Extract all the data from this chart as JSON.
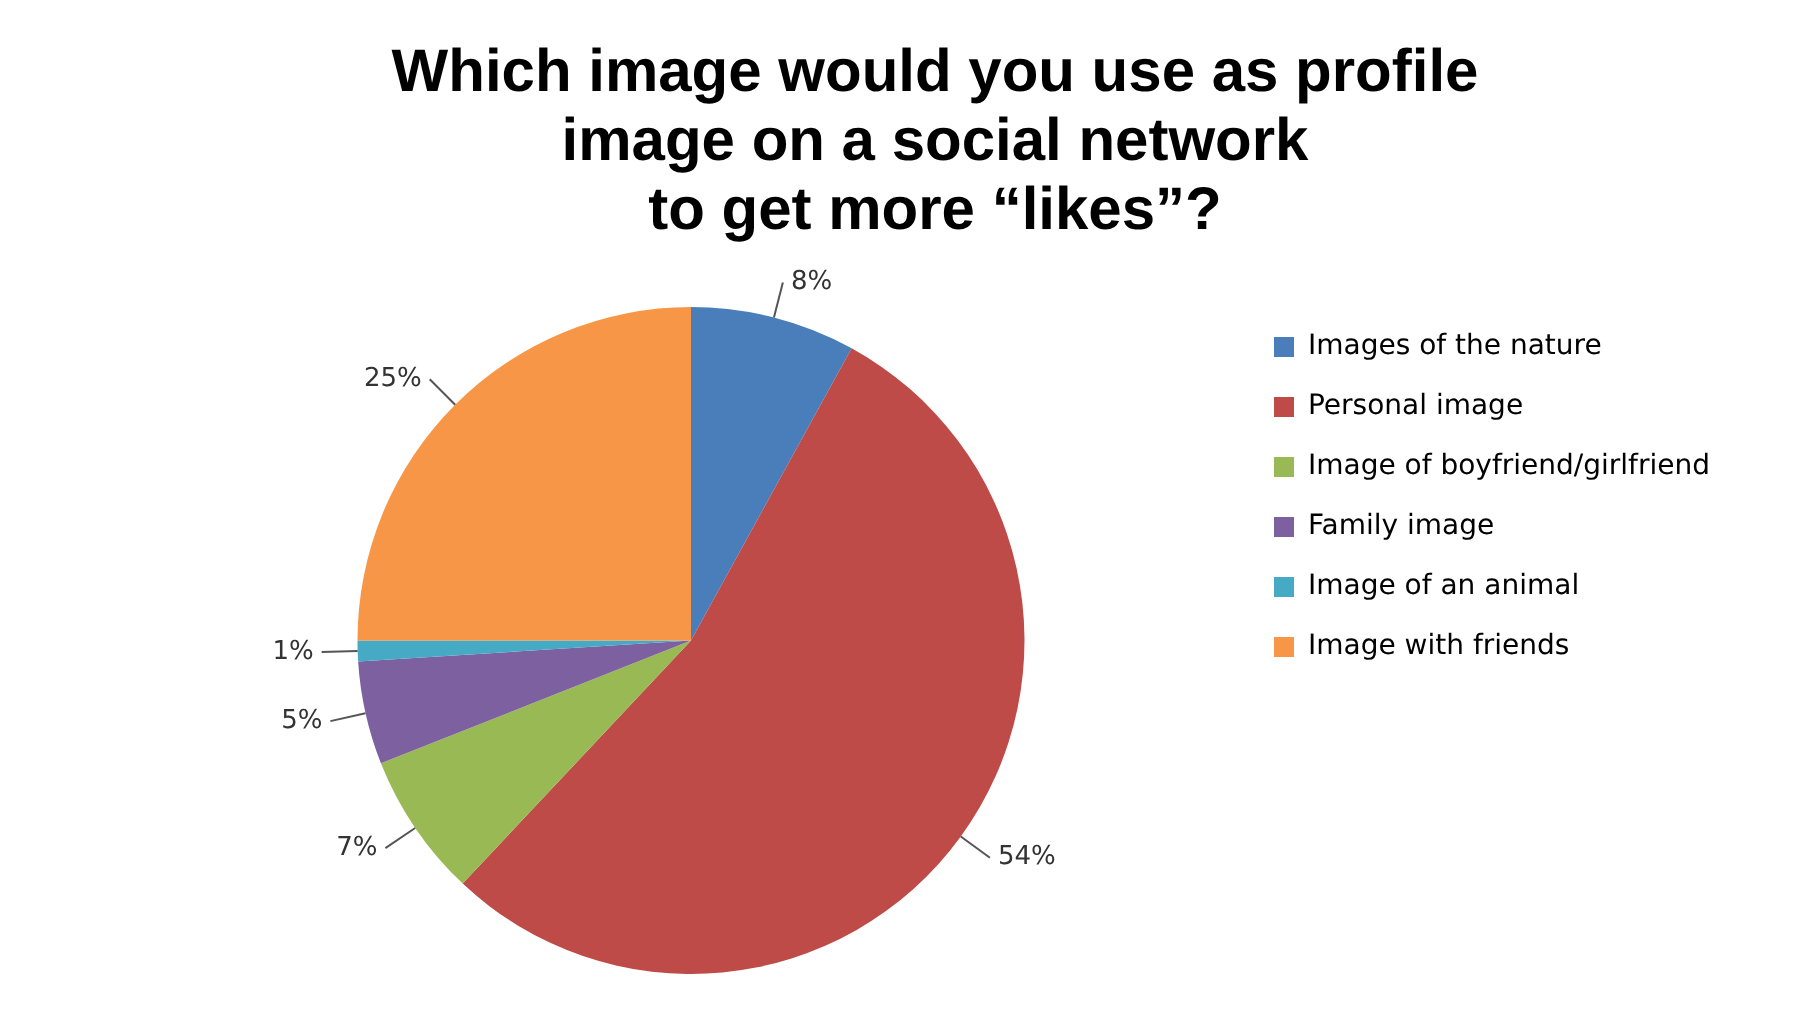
{
  "chart_data": {
    "type": "pie",
    "title": "Which image would you use as profile\nimage on a social network\nto get more “likes”?",
    "categories": [
      "Images of the nature",
      "Personal image",
      "Image of boyfriend/girlfriend",
      "Family image",
      "Image of an animal",
      "Image with friends"
    ],
    "values": [
      8,
      54,
      7,
      5,
      1,
      25
    ],
    "value_labels": [
      "8%",
      "54%",
      "7%",
      "5%",
      "1%",
      "25%"
    ],
    "colors": [
      "#4a7ebb",
      "#be4b48",
      "#98b954",
      "#7d60a0",
      "#46aac5",
      "#f79646"
    ],
    "legend": "right"
  }
}
